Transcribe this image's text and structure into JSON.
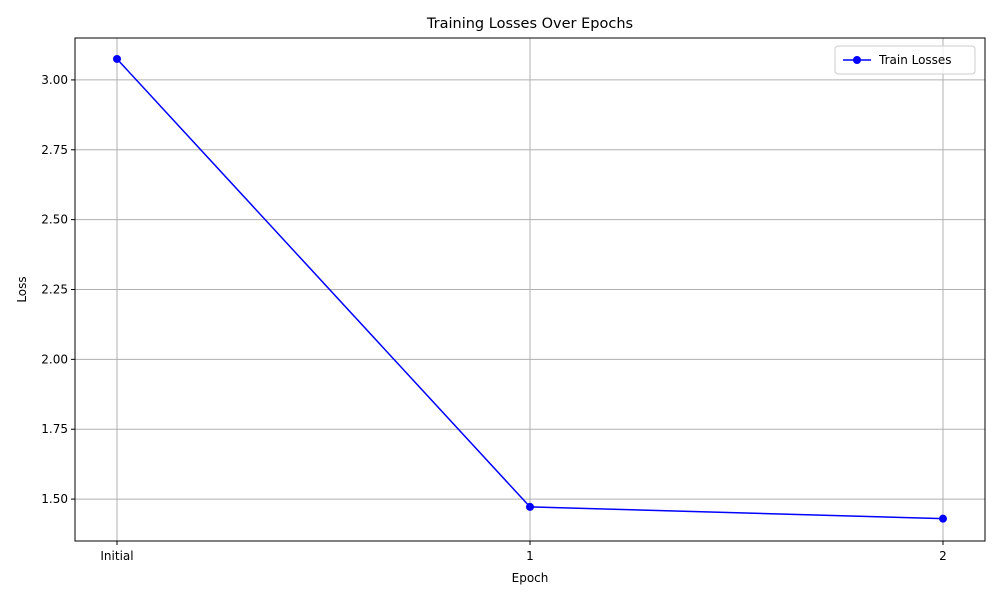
{
  "chart_data": {
    "type": "line",
    "title": "Training Losses Over Epochs",
    "xlabel": "Epoch",
    "ylabel": "Loss",
    "categories": [
      "Initial",
      "1",
      "2"
    ],
    "series": [
      {
        "name": "Train Losses",
        "values": [
          3.075,
          1.472,
          1.43
        ],
        "color": "#0000ff",
        "marker": "circle"
      }
    ],
    "ylim": [
      1.35,
      3.15
    ],
    "yticks": [
      1.5,
      1.75,
      2.0,
      2.25,
      2.5,
      2.75,
      3.0
    ],
    "ytick_labels": [
      "1.50",
      "1.75",
      "2.00",
      "2.25",
      "2.50",
      "2.75",
      "3.00"
    ],
    "grid": true,
    "legend": "top-right"
  }
}
